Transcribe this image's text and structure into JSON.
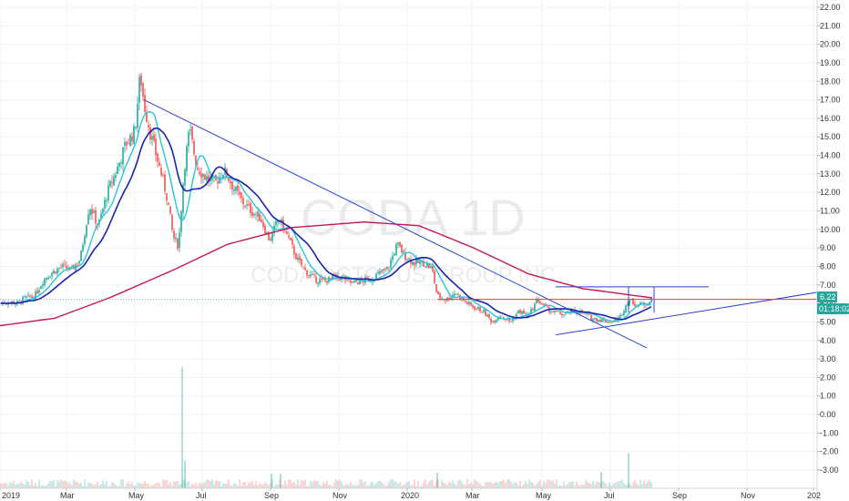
{
  "chart_data": {
    "type": "candlestick",
    "symbol": "CODA",
    "interval": "1D",
    "company": "CODA OCTOPUS GROUP INC",
    "last_price": "6.22",
    "countdown": "01:18:02",
    "y_ticks": [
      "22.00",
      "21.00",
      "20.00",
      "19.00",
      "18.00",
      "17.00",
      "16.00",
      "15.00",
      "14.00",
      "13.00",
      "12.00",
      "11.00",
      "10.00",
      "9.00",
      "8.00",
      "7.00",
      "6.00",
      "5.00",
      "4.00",
      "3.00",
      "2.00",
      "1.00",
      "0.00",
      "-1.00",
      "-2.00",
      "-3.00"
    ],
    "x_ticks": [
      "2019",
      "Mar",
      "May",
      "Jul",
      "Sep",
      "Nov",
      "2020",
      "Mar",
      "May",
      "Jul",
      "Sep",
      "Nov",
      "202"
    ],
    "ylim": [
      -4.2,
      22.5
    ],
    "grid": true,
    "colors": {
      "up": "#26a69a",
      "down": "#ef5350",
      "ma_fast": "#26c6da",
      "ma_mid": "#1a23b0",
      "ma_slow": "#c2185b",
      "trendline": "#2b3fd6",
      "hline": "#e53935",
      "price_label": "#26a69a",
      "countdown_label": "#26a69a"
    },
    "price_anchors": [
      [
        0,
        6.0
      ],
      [
        10,
        6.1
      ],
      [
        18,
        6.0
      ],
      [
        28,
        6.3
      ],
      [
        38,
        6.4
      ],
      [
        48,
        7.3
      ],
      [
        58,
        7.7
      ],
      [
        68,
        8.0
      ],
      [
        78,
        7.8
      ],
      [
        88,
        8.4
      ],
      [
        98,
        11.3
      ],
      [
        108,
        10.2
      ],
      [
        118,
        12.0
      ],
      [
        128,
        13.2
      ],
      [
        138,
        14.6
      ],
      [
        148,
        15.3
      ],
      [
        154,
        18.4
      ],
      [
        158,
        16.8
      ],
      [
        166,
        15.0
      ],
      [
        176,
        13.2
      ],
      [
        184,
        11.6
      ],
      [
        190,
        9.6
      ],
      [
        196,
        9.1
      ],
      [
        202,
        13.2
      ],
      [
        208,
        15.4
      ],
      [
        216,
        13.4
      ],
      [
        226,
        12.8
      ],
      [
        236,
        12.5
      ],
      [
        246,
        13.2
      ],
      [
        256,
        12.3
      ],
      [
        266,
        11.5
      ],
      [
        276,
        11.0
      ],
      [
        286,
        10.6
      ],
      [
        296,
        9.4
      ],
      [
        306,
        10.6
      ],
      [
        316,
        9.6
      ],
      [
        326,
        8.4
      ],
      [
        336,
        7.7
      ],
      [
        346,
        7.3
      ],
      [
        356,
        7.2
      ],
      [
        366,
        7.4
      ],
      [
        376,
        7.4
      ],
      [
        386,
        7.1
      ],
      [
        396,
        7.2
      ],
      [
        406,
        7.3
      ],
      [
        416,
        7.6
      ],
      [
        426,
        7.9
      ],
      [
        436,
        9.2
      ],
      [
        444,
        8.6
      ],
      [
        454,
        8.2
      ],
      [
        464,
        8.2
      ],
      [
        474,
        7.9
      ],
      [
        480,
        6.4
      ],
      [
        490,
        6.2
      ],
      [
        500,
        6.6
      ],
      [
        510,
        6.1
      ],
      [
        520,
        5.8
      ],
      [
        530,
        5.6
      ],
      [
        540,
        5.0
      ],
      [
        550,
        5.4
      ],
      [
        560,
        5.0
      ],
      [
        570,
        5.6
      ],
      [
        580,
        5.3
      ],
      [
        590,
        6.2
      ],
      [
        600,
        5.7
      ],
      [
        610,
        5.5
      ],
      [
        620,
        5.4
      ],
      [
        630,
        5.6
      ],
      [
        640,
        5.5
      ],
      [
        650,
        5.2
      ],
      [
        660,
        5.1
      ],
      [
        670,
        5.0
      ],
      [
        680,
        5.2
      ],
      [
        690,
        6.2
      ],
      [
        700,
        5.9
      ],
      [
        710,
        6.0
      ],
      [
        716,
        6.2
      ]
    ],
    "ma_slow_anchors": [
      [
        0,
        4.8
      ],
      [
        60,
        5.2
      ],
      [
        120,
        6.3
      ],
      [
        190,
        7.8
      ],
      [
        250,
        9.2
      ],
      [
        320,
        10.1
      ],
      [
        400,
        10.4
      ],
      [
        460,
        10.2
      ],
      [
        520,
        9.0
      ],
      [
        580,
        7.6
      ],
      [
        640,
        6.8
      ],
      [
        716,
        6.3
      ]
    ],
    "volume_spikes": [
      [
        200,
        2.55
      ],
      [
        203,
        -2.5
      ],
      [
        298,
        -3.2
      ],
      [
        308,
        -3.2
      ],
      [
        480,
        -3.15
      ],
      [
        660,
        -3.1
      ],
      [
        690,
        -2.1
      ]
    ],
    "trendlines": [
      {
        "from": [
          158,
          17.0
        ],
        "to": [
          710,
          3.6
        ]
      },
      {
        "from": [
          610,
          4.3
        ],
        "to": [
          897,
          6.6
        ]
      }
    ],
    "channel_top": {
      "from": [
        610,
        6.9
      ],
      "to": [
        778,
        6.9
      ]
    },
    "box_top": {
      "from": [
        690,
        6.9
      ],
      "to": [
        718,
        6.9
      ]
    },
    "hline": {
      "from": [
        480,
        6.22
      ],
      "to": [
        897,
        6.22
      ]
    }
  }
}
